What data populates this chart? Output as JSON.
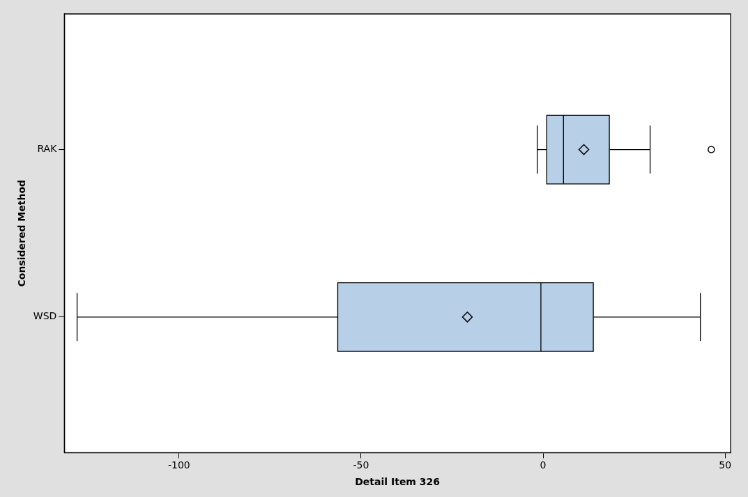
{
  "chart_data": {
    "type": "box",
    "orientation": "horizontal",
    "xlabel": "Detail Item 326",
    "ylabel": "Considered Method",
    "categories": [
      "RAK",
      "WSD"
    ],
    "color": "#b8cfe8",
    "boxes": [
      {
        "low": -1.6,
        "q1": 1,
        "median": 5.6,
        "q3": 18.2,
        "high": 29.4,
        "mean": 11.2,
        "outliers": [
          46.2
        ]
      },
      {
        "low": -128,
        "q1": -56.4,
        "median": -0.6,
        "q3": 13.8,
        "high": 43.2,
        "mean": -20.8
      }
    ],
    "xlim": [
      -131.5,
      51.5
    ],
    "xticks": [
      -100,
      -50,
      0,
      50
    ],
    "grid": false,
    "legend": false
  }
}
